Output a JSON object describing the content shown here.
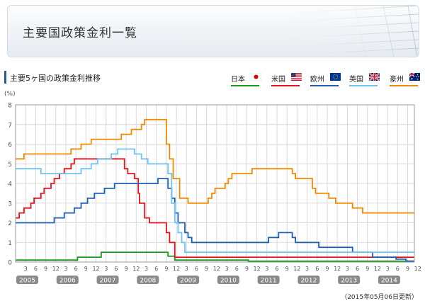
{
  "header": {
    "title": "主要国政策金利一覧"
  },
  "section": {
    "title": "主要5ヶ国の政策金利推移"
  },
  "update_note": "（2015年05月06日更新）",
  "legend": [
    {
      "label": "日本",
      "color": "#1a9a1a",
      "icon": "japan-flag-icon"
    },
    {
      "label": "米国",
      "color": "#e8101e",
      "icon": "us-flag-icon"
    },
    {
      "label": "欧州",
      "color": "#1e5fb4",
      "icon": "eu-flag-icon"
    },
    {
      "label": "英国",
      "color": "#6ec3f0",
      "icon": "uk-flag-icon"
    },
    {
      "label": "豪州",
      "color": "#ef8a00",
      "icon": "australia-flag-icon"
    }
  ],
  "chart_data": {
    "type": "line",
    "title": "主要5ヶ国の政策金利推移",
    "ylabel": "(%)",
    "ylim": [
      0,
      8
    ],
    "y_ticks": [
      0,
      1,
      2,
      3,
      4,
      5,
      6,
      7,
      8
    ],
    "xlim": [
      2005.0,
      2014.917
    ],
    "x_month_ticks": [
      "3",
      "6",
      "9",
      "12",
      "3",
      "6",
      "9",
      "12",
      "3",
      "6",
      "9",
      "12",
      "3",
      "6",
      "9",
      "12",
      "3",
      "6",
      "9",
      "12",
      "3",
      "6",
      "9",
      "12",
      "3",
      "6",
      "9",
      "12",
      "3",
      "6",
      "9",
      "12",
      "3",
      "6",
      "9",
      "12",
      "3",
      "6",
      "9",
      "12"
    ],
    "year_labels": [
      "2005",
      "2006",
      "2007",
      "2008",
      "2009",
      "2010",
      "2011",
      "2012",
      "2013",
      "2014"
    ],
    "grid": true,
    "legend_position": "top-right",
    "series": [
      {
        "name": "日本",
        "color": "#1a9a1a",
        "x": [
          2005.0,
          2006.54,
          2007.13,
          2008.79,
          2008.96,
          2010.79,
          2014.92
        ],
        "y": [
          0.1,
          0.25,
          0.5,
          0.3,
          0.1,
          0.05,
          0.05
        ]
      },
      {
        "name": "米国",
        "color": "#e8101e",
        "x": [
          2005.0,
          2005.09,
          2005.21,
          2005.38,
          2005.46,
          2005.63,
          2005.71,
          2005.88,
          2005.96,
          2006.09,
          2006.21,
          2006.38,
          2006.46,
          2007.71,
          2007.79,
          2007.96,
          2008.05,
          2008.08,
          2008.21,
          2008.33,
          2008.75,
          2008.83,
          2008.96,
          2014.92
        ],
        "y": [
          2.25,
          2.5,
          2.75,
          3.0,
          3.25,
          3.5,
          3.75,
          4.0,
          4.25,
          4.5,
          4.75,
          5.0,
          5.25,
          4.75,
          4.5,
          4.25,
          3.5,
          3.0,
          2.25,
          2.0,
          1.5,
          1.0,
          0.25,
          0.25
        ]
      },
      {
        "name": "欧州",
        "color": "#1e5fb4",
        "x": [
          2005.0,
          2005.96,
          2006.21,
          2006.46,
          2006.63,
          2006.79,
          2006.96,
          2007.21,
          2007.46,
          2008.54,
          2008.79,
          2008.88,
          2008.96,
          2009.04,
          2009.21,
          2009.29,
          2009.38,
          2011.29,
          2011.54,
          2011.88,
          2011.96,
          2012.54,
          2013.38,
          2013.88,
          2014.46,
          2014.71,
          2014.92
        ],
        "y": [
          2.0,
          2.25,
          2.5,
          2.75,
          3.0,
          3.25,
          3.5,
          3.75,
          4.0,
          4.25,
          3.75,
          3.25,
          2.5,
          2.0,
          1.5,
          1.25,
          1.0,
          1.25,
          1.5,
          1.25,
          1.0,
          0.75,
          0.5,
          0.25,
          0.15,
          0.05,
          0.05
        ]
      },
      {
        "name": "英国",
        "color": "#6ec3f0",
        "x": [
          2005.0,
          2005.63,
          2006.63,
          2006.88,
          2007.04,
          2007.38,
          2007.54,
          2007.96,
          2008.13,
          2008.29,
          2008.79,
          2008.88,
          2008.96,
          2009.04,
          2009.13,
          2009.21,
          2014.92
        ],
        "y": [
          4.75,
          4.5,
          4.75,
          5.0,
          5.25,
          5.5,
          5.75,
          5.5,
          5.25,
          5.0,
          4.5,
          3.0,
          2.0,
          1.5,
          1.0,
          0.5,
          0.5
        ]
      },
      {
        "name": "豪州",
        "color": "#ef8a00",
        "x": [
          2005.0,
          2005.21,
          2006.38,
          2006.63,
          2006.88,
          2007.63,
          2007.88,
          2008.13,
          2008.21,
          2008.75,
          2008.83,
          2008.92,
          2009.08,
          2009.29,
          2009.79,
          2009.88,
          2009.96,
          2010.21,
          2010.29,
          2010.38,
          2010.88,
          2011.88,
          2011.96,
          2012.38,
          2012.46,
          2012.79,
          2012.96,
          2013.38,
          2013.63,
          2014.92
        ],
        "y": [
          5.25,
          5.5,
          5.75,
          6.0,
          6.25,
          6.5,
          6.75,
          7.0,
          7.25,
          6.0,
          5.25,
          4.25,
          3.25,
          3.0,
          3.25,
          3.5,
          3.75,
          4.0,
          4.25,
          4.5,
          4.75,
          4.5,
          4.25,
          3.75,
          3.5,
          3.25,
          3.0,
          2.75,
          2.5,
          2.5
        ]
      }
    ]
  }
}
